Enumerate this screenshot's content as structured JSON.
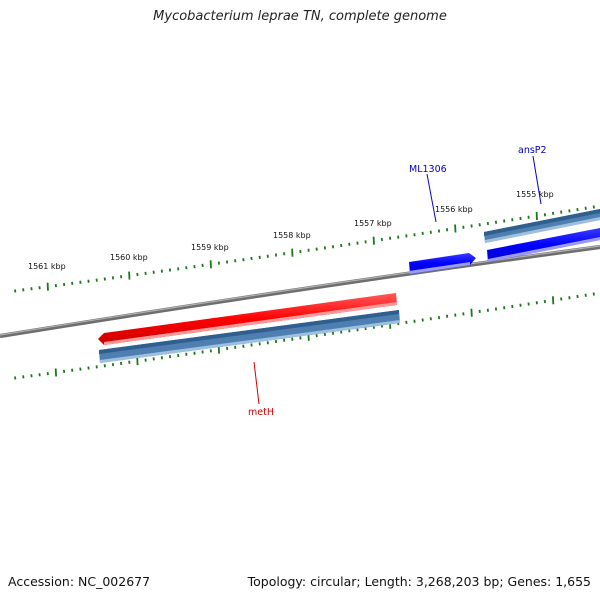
{
  "title": "Mycobacterium leprae TN, complete genome",
  "footer": {
    "accession": "Accession: NC_002677",
    "summary": "Topology: circular; Length: 3,268,203 bp; Genes: 1,655"
  },
  "ruler": {
    "labels": [
      "1561 kbp",
      "1560 kbp",
      "1559 kbp",
      "1558 kbp",
      "1557 kbp",
      "1556 kbp",
      "1555 kbp"
    ]
  },
  "genes": [
    {
      "name": "ML1306",
      "color": "#0000cc"
    },
    {
      "name": "ansP2",
      "color": "#0000cc"
    },
    {
      "name": "metH",
      "color": "#cc0000"
    }
  ],
  "colors": {
    "backbone": "#808080",
    "tick": "#1a7a1a",
    "forward_gene": "#0000ff",
    "reverse_gene": "#ff0000",
    "cds": "#4682b4"
  }
}
